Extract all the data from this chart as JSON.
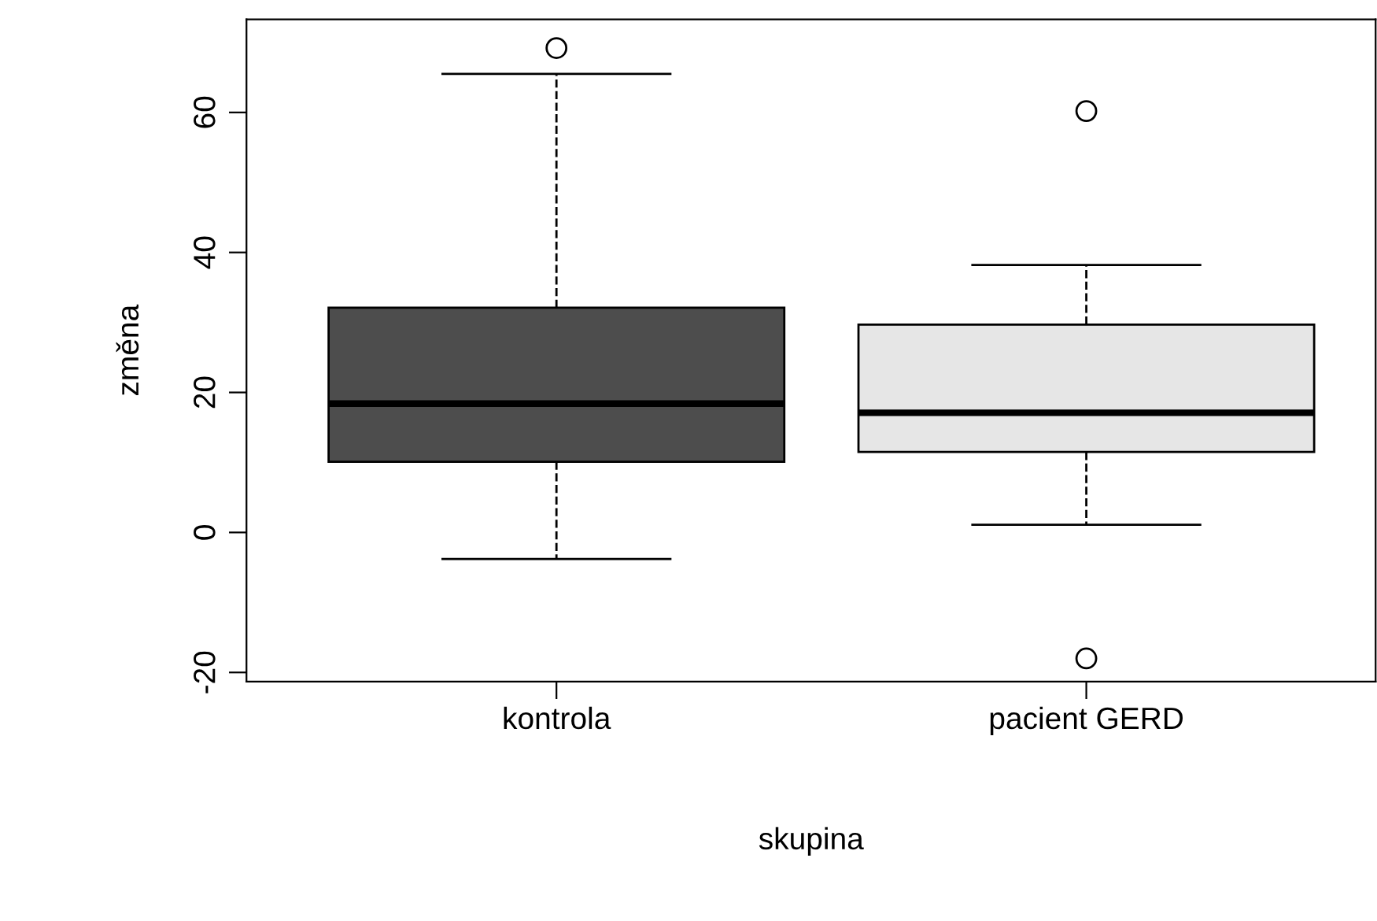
{
  "chart_data": {
    "type": "box",
    "xlabel": "skupina",
    "ylabel": "změna",
    "categories": [
      "kontrola",
      "pacient GERD"
    ],
    "boxes": [
      {
        "low": -3.8,
        "q1": 10.1,
        "median": 18.4,
        "q3": 32.1,
        "high": 65.5,
        "outliers": [
          69.2
        ]
      },
      {
        "low": 1.1,
        "q1": 11.5,
        "median": 17.1,
        "q3": 29.7,
        "high": 38.2,
        "outliers": [
          60.2,
          -18
        ]
      }
    ],
    "colors": [
      "#4d4d4d",
      "#e6e6e6"
    ],
    "ylim": [
      -21.3,
      73.3
    ],
    "yticks": [
      -20,
      0,
      20,
      40,
      60
    ],
    "grid": false
  }
}
